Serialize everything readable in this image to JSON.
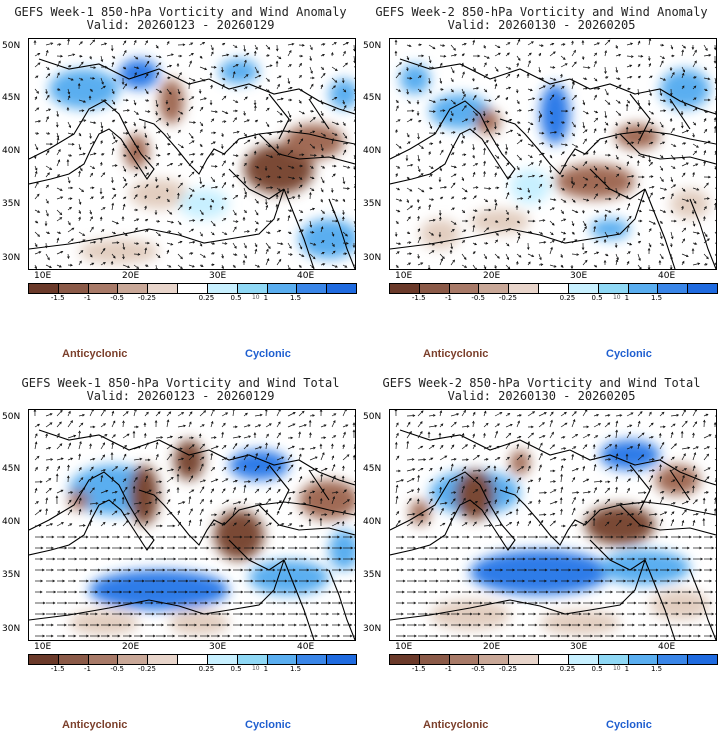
{
  "panels": [
    {
      "title": "GEFS Week-1 850-hPa Vorticity and Wind Anomaly",
      "valid": "Valid: 20260123 - 20260129"
    },
    {
      "title": "GEFS Week-2 850-hPa Vorticity and Wind Anomaly",
      "valid": "Valid: 20260130 - 20260205"
    },
    {
      "title": "GEFS Week-1 850-hPa Vorticity and Wind Total",
      "valid": "Valid: 20260123 - 20260129"
    },
    {
      "title": "GEFS Week-2 850-hPa Vorticity and Wind Total",
      "valid": "Valid: 20260130 - 20260205"
    }
  ],
  "lat_labels": [
    "50N",
    "45N",
    "40N",
    "35N",
    "30N"
  ],
  "lon_labels": [
    "10E",
    "20E",
    "30E",
    "40E"
  ],
  "colorbar": {
    "ticks": [
      "-1.5",
      "-1",
      "-0.5",
      "-0.25",
      "0.25",
      "0.5",
      "1",
      "1.5"
    ],
    "scale_label": "10",
    "colors": [
      "#6b3a2a",
      "#8b5a48",
      "#a87a68",
      "#c9a898",
      "#e8d5cb",
      "#ffffff",
      "#c8f0ff",
      "#8fd8f5",
      "#5aaef0",
      "#3a86e8",
      "#1f6be0"
    ]
  },
  "legend": {
    "anticyclonic": "Anticyclonic",
    "cyclonic": "Cyclonic"
  },
  "colors": {
    "brown_dark": "#7a4a35",
    "brown_mid": "#a06b55",
    "brown_light": "#e2cdbf",
    "cyan_light": "#c8f0ff",
    "blue_mid": "#5aaef0",
    "blue_dark": "#2f7ce8"
  }
}
